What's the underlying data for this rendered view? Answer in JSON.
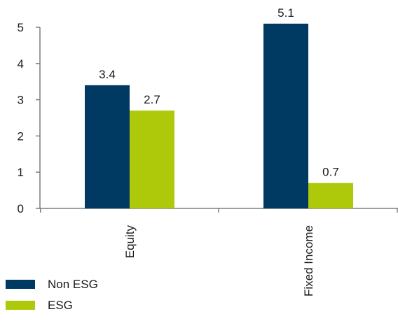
{
  "chart_data": {
    "type": "bar",
    "categories": [
      "Equity",
      "Fixed Income"
    ],
    "series": [
      {
        "name": "Non ESG",
        "values": [
          3.4,
          5.1
        ],
        "color": "#003a63"
      },
      {
        "name": "ESG",
        "values": [
          2.7,
          0.7
        ],
        "color": "#aec90a"
      }
    ],
    "data_labels": [
      [
        "3.4",
        "5.1"
      ],
      [
        "2.7",
        "0.7"
      ]
    ],
    "ylim": [
      0,
      5
    ],
    "yticks": [
      "0",
      "1",
      "2",
      "3",
      "4",
      "5"
    ],
    "grid": false,
    "legend_position": "bottom-left"
  }
}
